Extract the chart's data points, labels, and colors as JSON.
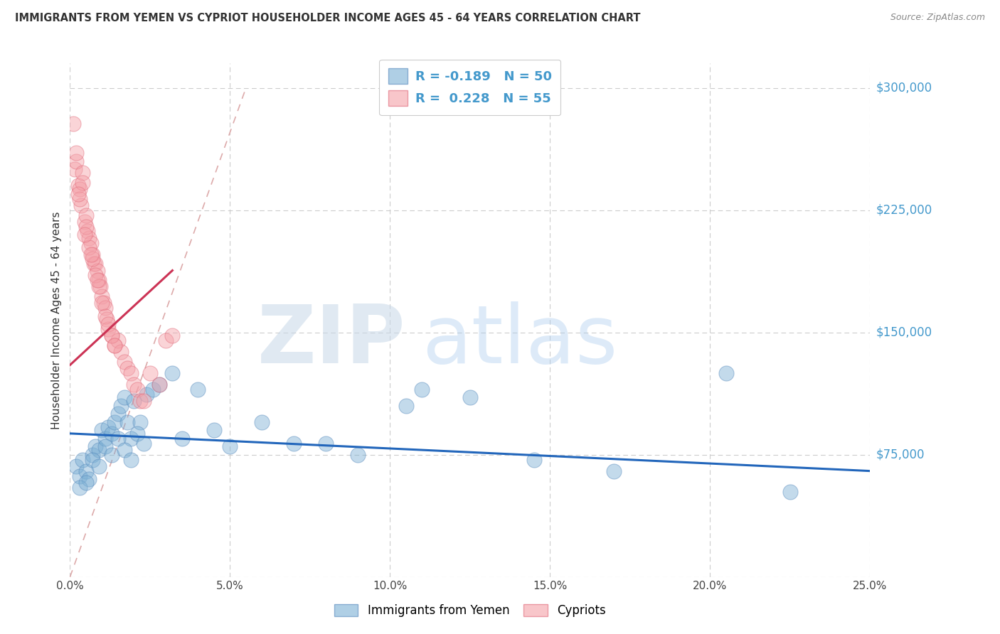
{
  "title": "IMMIGRANTS FROM YEMEN VS CYPRIOT HOUSEHOLDER INCOME AGES 45 - 64 YEARS CORRELATION CHART",
  "source": "Source: ZipAtlas.com",
  "ylabel": "Householder Income Ages 45 - 64 years",
  "ytick_vals": [
    0,
    75000,
    150000,
    225000,
    300000
  ],
  "ytick_labels": [
    "",
    "$75,000",
    "$150,000",
    "$225,000",
    "$300,000"
  ],
  "xtick_vals": [
    0.0,
    5.0,
    10.0,
    15.0,
    20.0,
    25.0
  ],
  "xtick_labels": [
    "0.0%",
    "5.0%",
    "10.0%",
    "15.0%",
    "20.0%",
    "25.0%"
  ],
  "ylim": [
    0,
    315000
  ],
  "xlim": [
    0.0,
    25.0
  ],
  "blue_color": "#7BAFD4",
  "pink_color": "#F4A0A8",
  "blue_edge_color": "#5588BB",
  "pink_edge_color": "#E06878",
  "blue_label": "Immigrants from Yemen",
  "pink_label": "Cypriots",
  "blue_R": "-0.189",
  "blue_N": "50",
  "pink_R": "0.228",
  "pink_N": "55",
  "watermark_zip": "ZIP",
  "watermark_atlas": "atlas",
  "blue_scatter_x": [
    0.2,
    0.3,
    0.4,
    0.5,
    0.6,
    0.7,
    0.8,
    0.9,
    1.0,
    1.1,
    1.2,
    1.3,
    1.4,
    1.5,
    1.6,
    1.7,
    1.8,
    1.9,
    2.0,
    2.2,
    2.4,
    2.6,
    2.8,
    3.2,
    3.5,
    4.0,
    4.5,
    5.0,
    6.0,
    7.0,
    8.0,
    9.0,
    10.5,
    11.0,
    12.5,
    14.5,
    17.0,
    20.5,
    22.5,
    0.3,
    0.5,
    0.7,
    0.9,
    1.1,
    1.3,
    1.5,
    1.7,
    1.9,
    2.1,
    2.3
  ],
  "blue_scatter_y": [
    68000,
    62000,
    72000,
    65000,
    60000,
    75000,
    80000,
    78000,
    90000,
    85000,
    92000,
    88000,
    95000,
    100000,
    105000,
    110000,
    95000,
    85000,
    108000,
    95000,
    112000,
    115000,
    118000,
    125000,
    85000,
    115000,
    90000,
    80000,
    95000,
    82000,
    82000,
    75000,
    105000,
    115000,
    110000,
    72000,
    65000,
    125000,
    52000,
    55000,
    58000,
    72000,
    68000,
    80000,
    75000,
    85000,
    78000,
    72000,
    88000,
    82000
  ],
  "pink_scatter_x": [
    0.1,
    0.15,
    0.2,
    0.25,
    0.3,
    0.35,
    0.4,
    0.45,
    0.5,
    0.55,
    0.6,
    0.65,
    0.7,
    0.75,
    0.8,
    0.85,
    0.9,
    0.95,
    1.0,
    1.05,
    1.1,
    1.15,
    1.2,
    1.3,
    1.4,
    1.5,
    1.6,
    1.7,
    1.8,
    1.9,
    2.0,
    2.1,
    2.2,
    2.3,
    0.2,
    0.3,
    0.4,
    0.5,
    0.6,
    0.7,
    0.8,
    0.9,
    1.0,
    1.1,
    1.2,
    1.3,
    1.4,
    2.5,
    2.8,
    3.0,
    0.25,
    0.45,
    0.65,
    0.85,
    3.2
  ],
  "pink_scatter_y": [
    278000,
    250000,
    255000,
    240000,
    238000,
    228000,
    248000,
    218000,
    222000,
    212000,
    208000,
    205000,
    198000,
    192000,
    192000,
    188000,
    182000,
    178000,
    172000,
    168000,
    165000,
    158000,
    152000,
    148000,
    142000,
    145000,
    138000,
    132000,
    128000,
    125000,
    118000,
    115000,
    108000,
    108000,
    260000,
    232000,
    242000,
    215000,
    202000,
    195000,
    185000,
    178000,
    168000,
    160000,
    155000,
    148000,
    142000,
    125000,
    118000,
    145000,
    235000,
    210000,
    198000,
    182000,
    148000
  ],
  "blue_trend_x": [
    0.0,
    25.0
  ],
  "blue_trend_y": [
    88000,
    65000
  ],
  "pink_trend_x": [
    0.0,
    3.2
  ],
  "pink_trend_y": [
    130000,
    188000
  ],
  "diag_line_x": [
    0.0,
    5.5
  ],
  "diag_line_y": [
    0,
    300000
  ],
  "diag_line_color": "#DDAAAA",
  "grid_color": "#CCCCCC",
  "title_color": "#333333",
  "right_label_color": "#4499CC",
  "source_color": "#888888",
  "legend_text_color": "#4499CC",
  "blue_trend_color": "#2266BB",
  "pink_trend_color": "#CC3355"
}
